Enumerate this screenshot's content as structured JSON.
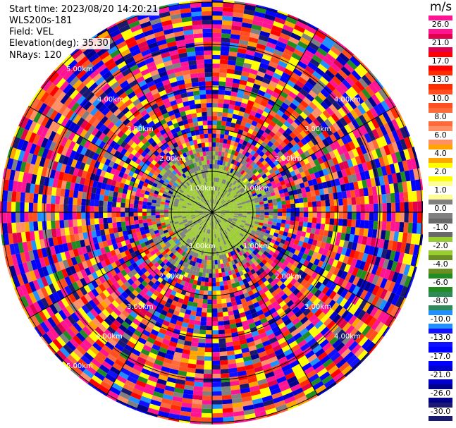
{
  "header": {
    "start_time": "Start time: 2023/08/20 14:20:21",
    "instrument": "WLS200s-181",
    "field": "Field: VEL",
    "elevation": "Elevation(deg): 35.30",
    "nrays": "NRays: 120"
  },
  "ring_labels": {
    "r1": "1.00km",
    "r2": "2.00km",
    "r3": "3.00km",
    "r4": "4.00km",
    "r5": "5.00km"
  },
  "colorbar": {
    "unit": "m/s",
    "ticks": [
      "26.0",
      "21.0",
      "17.0",
      "13.0",
      "10.0",
      "8.0",
      "6.0",
      "4.0",
      "2.0",
      "1.0",
      "0.0",
      "-1.0",
      "-2.0",
      "-4.0",
      "-6.0",
      "-8.0",
      "-10.0",
      "-13.0",
      "-17.0",
      "-21.0",
      "-26.0",
      "-30.0"
    ],
    "colors": [
      "#ff1493",
      "#e0004d",
      "#ff0000",
      "#ff2a00",
      "#ff4e1f",
      "#ff6a3d",
      "#ff8f66",
      "#ffa500",
      "#ffff00",
      "#ffff99",
      "#808080",
      "#696969",
      "#9acd32",
      "#6b8e23",
      "#228b22",
      "#2e8b57",
      "#1e90ff",
      "#1010ff",
      "#0000ff",
      "#0000cd",
      "#00008b",
      "#191970"
    ]
  }
}
